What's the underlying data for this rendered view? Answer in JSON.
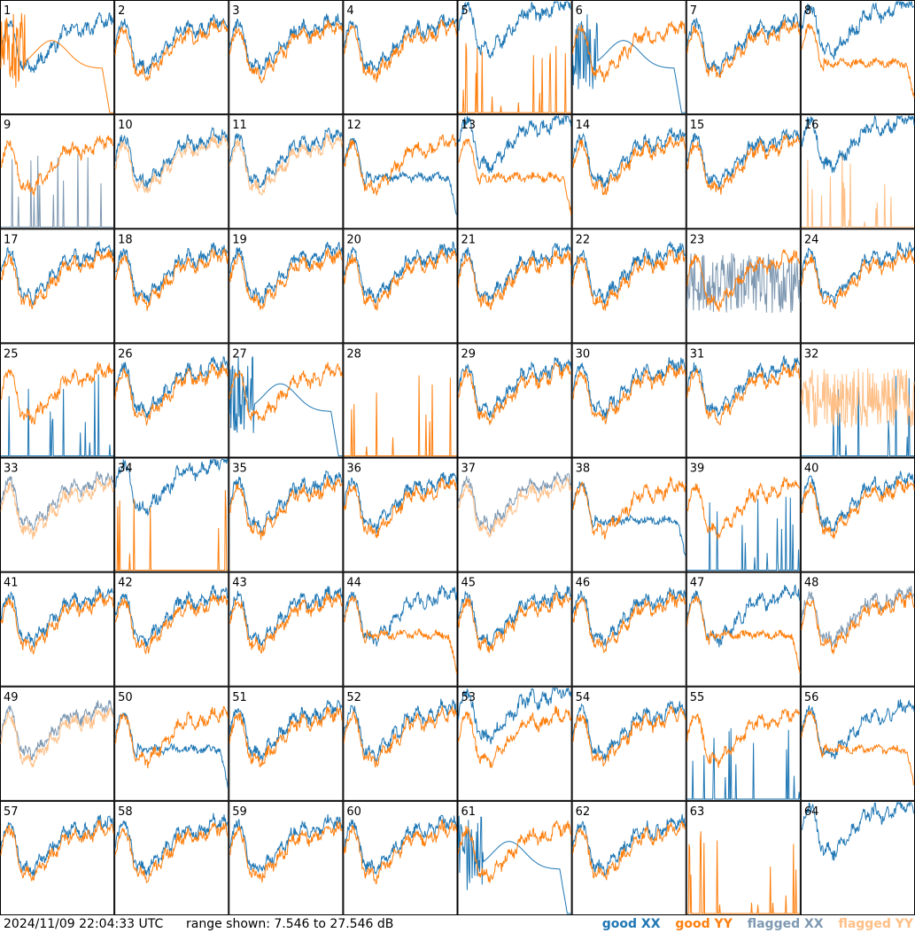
{
  "footer": {
    "timestamp": "2024/11/09 22:04:33 UTC",
    "range_text": "range shown: 7.546 to 27.546 dB"
  },
  "legend": [
    {
      "label": "good XX",
      "color": "#1f77b4"
    },
    {
      "label": "good YY",
      "color": "#ff7f0e"
    },
    {
      "label": "flagged XX",
      "color": "#7f99b2"
    },
    {
      "label": "flagged YY",
      "color": "#ffbf86"
    }
  ],
  "chart_data": {
    "type": "line",
    "ylim": [
      7.546,
      27.546
    ],
    "panels": [
      {
        "id": "1",
        "xx": "good",
        "yy": "good",
        "xx_shape": "normal",
        "yy_shape": "decay"
      },
      {
        "id": "2",
        "xx": "good",
        "yy": "good",
        "xx_shape": "normal",
        "yy_shape": "normal"
      },
      {
        "id": "3",
        "xx": "good",
        "yy": "good",
        "xx_shape": "normal",
        "yy_shape": "normal"
      },
      {
        "id": "4",
        "xx": "good",
        "yy": "good",
        "xx_shape": "normal",
        "yy_shape": "normal"
      },
      {
        "id": "5",
        "xx": "good",
        "yy": "good",
        "xx_shape": "high",
        "yy_shape": "spikes"
      },
      {
        "id": "6",
        "xx": "good",
        "yy": "good",
        "xx_shape": "decay",
        "yy_shape": "normal"
      },
      {
        "id": "7",
        "xx": "good",
        "yy": "good",
        "xx_shape": "normal",
        "yy_shape": "normal"
      },
      {
        "id": "8",
        "xx": "good",
        "yy": "good",
        "xx_shape": "high",
        "yy_shape": "flat"
      },
      {
        "id": "9",
        "xx": "flagged",
        "yy": "good",
        "xx_shape": "spikes",
        "yy_shape": "normal"
      },
      {
        "id": "10",
        "xx": "good",
        "yy": "flagged",
        "xx_shape": "normal",
        "yy_shape": "normal"
      },
      {
        "id": "11",
        "xx": "good",
        "yy": "flagged",
        "xx_shape": "normal",
        "yy_shape": "normal"
      },
      {
        "id": "12",
        "xx": "good",
        "yy": "good",
        "xx_shape": "flat",
        "yy_shape": "normal"
      },
      {
        "id": "13",
        "xx": "good",
        "yy": "good",
        "xx_shape": "high",
        "yy_shape": "flat"
      },
      {
        "id": "14",
        "xx": "good",
        "yy": "good",
        "xx_shape": "normal",
        "yy_shape": "normal"
      },
      {
        "id": "15",
        "xx": "good",
        "yy": "good",
        "xx_shape": "normal",
        "yy_shape": "normal"
      },
      {
        "id": "16",
        "xx": "good",
        "yy": "flagged",
        "xx_shape": "high",
        "yy_shape": "spikes"
      },
      {
        "id": "17",
        "xx": "good",
        "yy": "good",
        "xx_shape": "normal",
        "yy_shape": "normal"
      },
      {
        "id": "18",
        "xx": "good",
        "yy": "good",
        "xx_shape": "normal",
        "yy_shape": "normal"
      },
      {
        "id": "19",
        "xx": "good",
        "yy": "good",
        "xx_shape": "normal",
        "yy_shape": "normal"
      },
      {
        "id": "20",
        "xx": "good",
        "yy": "good",
        "xx_shape": "normal",
        "yy_shape": "normal"
      },
      {
        "id": "21",
        "xx": "good",
        "yy": "good",
        "xx_shape": "normal",
        "yy_shape": "normal"
      },
      {
        "id": "22",
        "xx": "good",
        "yy": "good",
        "xx_shape": "normal",
        "yy_shape": "normal"
      },
      {
        "id": "23",
        "xx": "flagged",
        "yy": "good",
        "xx_shape": "noisy",
        "yy_shape": "normal"
      },
      {
        "id": "24",
        "xx": "good",
        "yy": "good",
        "xx_shape": "normal",
        "yy_shape": "normal"
      },
      {
        "id": "25",
        "xx": "good",
        "yy": "good",
        "xx_shape": "spikes",
        "yy_shape": "normal"
      },
      {
        "id": "26",
        "xx": "good",
        "yy": "good",
        "xx_shape": "normal",
        "yy_shape": "normal"
      },
      {
        "id": "27",
        "xx": "good",
        "yy": "good",
        "xx_shape": "decay",
        "yy_shape": "normal"
      },
      {
        "id": "28",
        "xx": "good",
        "yy": "good",
        "xx_shape": "none",
        "yy_shape": "spikes"
      },
      {
        "id": "29",
        "xx": "good",
        "yy": "good",
        "xx_shape": "normal",
        "yy_shape": "normal"
      },
      {
        "id": "30",
        "xx": "good",
        "yy": "good",
        "xx_shape": "normal",
        "yy_shape": "normal"
      },
      {
        "id": "31",
        "xx": "good",
        "yy": "good",
        "xx_shape": "normal",
        "yy_shape": "normal"
      },
      {
        "id": "32",
        "xx": "good",
        "yy": "flagged",
        "xx_shape": "spikes",
        "yy_shape": "noisy"
      },
      {
        "id": "33",
        "xx": "flagged",
        "yy": "flagged",
        "xx_shape": "normal",
        "yy_shape": "normal"
      },
      {
        "id": "34",
        "xx": "good",
        "yy": "good",
        "xx_shape": "high",
        "yy_shape": "spikes"
      },
      {
        "id": "35",
        "xx": "good",
        "yy": "good",
        "xx_shape": "normal",
        "yy_shape": "normal"
      },
      {
        "id": "36",
        "xx": "good",
        "yy": "good",
        "xx_shape": "normal",
        "yy_shape": "normal"
      },
      {
        "id": "37",
        "xx": "flagged",
        "yy": "flagged",
        "xx_shape": "normal",
        "yy_shape": "normal"
      },
      {
        "id": "38",
        "xx": "good",
        "yy": "good",
        "xx_shape": "flat",
        "yy_shape": "normal"
      },
      {
        "id": "39",
        "xx": "good",
        "yy": "good",
        "xx_shape": "spikes",
        "yy_shape": "normal"
      },
      {
        "id": "40",
        "xx": "good",
        "yy": "good",
        "xx_shape": "normal",
        "yy_shape": "normal"
      },
      {
        "id": "41",
        "xx": "good",
        "yy": "good",
        "xx_shape": "normal",
        "yy_shape": "normal"
      },
      {
        "id": "42",
        "xx": "good",
        "yy": "good",
        "xx_shape": "normal",
        "yy_shape": "normal"
      },
      {
        "id": "43",
        "xx": "good",
        "yy": "good",
        "xx_shape": "normal",
        "yy_shape": "normal"
      },
      {
        "id": "44",
        "xx": "good",
        "yy": "good",
        "xx_shape": "normal",
        "yy_shape": "flat"
      },
      {
        "id": "45",
        "xx": "good",
        "yy": "good",
        "xx_shape": "normal",
        "yy_shape": "normal"
      },
      {
        "id": "46",
        "xx": "good",
        "yy": "good",
        "xx_shape": "normal",
        "yy_shape": "normal"
      },
      {
        "id": "47",
        "xx": "good",
        "yy": "good",
        "xx_shape": "normal",
        "yy_shape": "flat"
      },
      {
        "id": "48",
        "xx": "flagged",
        "yy": "good",
        "xx_shape": "normal",
        "yy_shape": "normal"
      },
      {
        "id": "49",
        "xx": "flagged",
        "yy": "flagged",
        "xx_shape": "normal",
        "yy_shape": "normal"
      },
      {
        "id": "50",
        "xx": "good",
        "yy": "good",
        "xx_shape": "flat",
        "yy_shape": "normal"
      },
      {
        "id": "51",
        "xx": "good",
        "yy": "good",
        "xx_shape": "normal",
        "yy_shape": "normal"
      },
      {
        "id": "52",
        "xx": "good",
        "yy": "good",
        "xx_shape": "normal",
        "yy_shape": "normal"
      },
      {
        "id": "53",
        "xx": "good",
        "yy": "good",
        "xx_shape": "high",
        "yy_shape": "normal"
      },
      {
        "id": "54",
        "xx": "good",
        "yy": "good",
        "xx_shape": "normal",
        "yy_shape": "normal"
      },
      {
        "id": "55",
        "xx": "good",
        "yy": "good",
        "xx_shape": "spikes",
        "yy_shape": "normal"
      },
      {
        "id": "56",
        "xx": "good",
        "yy": "good",
        "xx_shape": "normal",
        "yy_shape": "flat"
      },
      {
        "id": "57",
        "xx": "good",
        "yy": "good",
        "xx_shape": "normal",
        "yy_shape": "normal"
      },
      {
        "id": "58",
        "xx": "good",
        "yy": "good",
        "xx_shape": "normal",
        "yy_shape": "normal"
      },
      {
        "id": "59",
        "xx": "good",
        "yy": "good",
        "xx_shape": "normal",
        "yy_shape": "normal"
      },
      {
        "id": "60",
        "xx": "good",
        "yy": "good",
        "xx_shape": "normal",
        "yy_shape": "normal"
      },
      {
        "id": "61",
        "xx": "good",
        "yy": "good",
        "xx_shape": "decay",
        "yy_shape": "normal"
      },
      {
        "id": "62",
        "xx": "good",
        "yy": "good",
        "xx_shape": "normal",
        "yy_shape": "normal"
      },
      {
        "id": "63",
        "xx": "good",
        "yy": "good",
        "xx_shape": "none",
        "yy_shape": "spikes"
      },
      {
        "id": "64",
        "xx": "good",
        "yy": "good",
        "xx_shape": "high",
        "yy_shape": "none"
      }
    ]
  }
}
